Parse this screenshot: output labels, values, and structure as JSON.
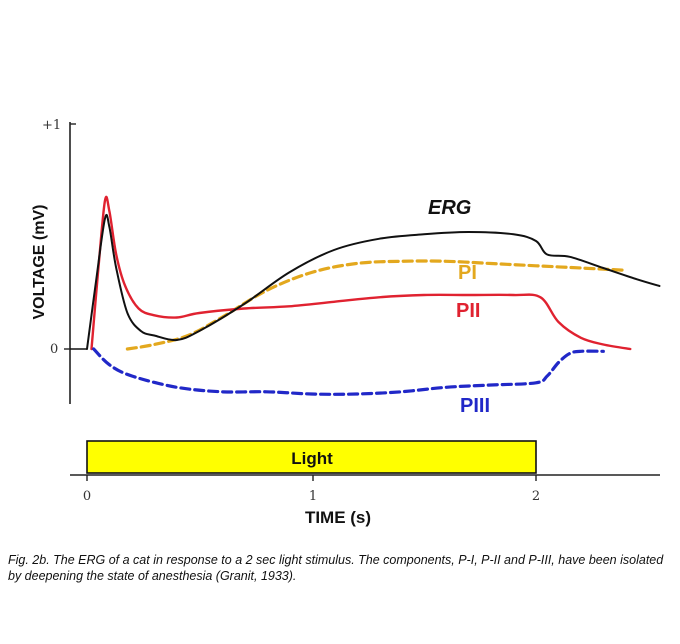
{
  "chart_data": {
    "type": "line",
    "xlabel": "TIME (s)",
    "ylabel": "VOLTAGE (mV)",
    "x_ticks": [
      "0",
      "1",
      "2"
    ],
    "y_ticks": [
      "0",
      "+1"
    ],
    "xlim": [
      -0.08,
      2.55
    ],
    "ylim": [
      -0.24,
      1.0
    ],
    "series": [
      {
        "name": "ERG",
        "color": "#111111",
        "style": "solid",
        "points": [
          [
            0.0,
            0.0
          ],
          [
            0.04,
            0.3
          ],
          [
            0.08,
            0.58
          ],
          [
            0.1,
            0.54
          ],
          [
            0.13,
            0.36
          ],
          [
            0.18,
            0.16
          ],
          [
            0.24,
            0.08
          ],
          [
            0.3,
            0.06
          ],
          [
            0.4,
            0.04
          ],
          [
            0.5,
            0.08
          ],
          [
            0.7,
            0.2
          ],
          [
            0.9,
            0.34
          ],
          [
            1.1,
            0.44
          ],
          [
            1.3,
            0.49
          ],
          [
            1.5,
            0.51
          ],
          [
            1.7,
            0.52
          ],
          [
            1.9,
            0.51
          ],
          [
            2.0,
            0.48
          ],
          [
            2.05,
            0.42
          ],
          [
            2.15,
            0.41
          ],
          [
            2.3,
            0.36
          ],
          [
            2.45,
            0.31
          ],
          [
            2.55,
            0.28
          ]
        ]
      },
      {
        "name": "PI",
        "color": "#e3a81e",
        "style": "dashed",
        "points": [
          [
            0.18,
            0.0
          ],
          [
            0.3,
            0.02
          ],
          [
            0.45,
            0.06
          ],
          [
            0.6,
            0.14
          ],
          [
            0.8,
            0.26
          ],
          [
            1.0,
            0.34
          ],
          [
            1.2,
            0.38
          ],
          [
            1.4,
            0.39
          ],
          [
            1.6,
            0.39
          ],
          [
            1.8,
            0.38
          ],
          [
            2.0,
            0.37
          ],
          [
            2.2,
            0.36
          ],
          [
            2.4,
            0.35
          ]
        ]
      },
      {
        "name": "PII",
        "color": "#e02230",
        "style": "solid",
        "points": [
          [
            0.02,
            0.0
          ],
          [
            0.05,
            0.35
          ],
          [
            0.08,
            0.66
          ],
          [
            0.1,
            0.61
          ],
          [
            0.13,
            0.42
          ],
          [
            0.17,
            0.28
          ],
          [
            0.23,
            0.18
          ],
          [
            0.3,
            0.15
          ],
          [
            0.4,
            0.14
          ],
          [
            0.5,
            0.16
          ],
          [
            0.7,
            0.18
          ],
          [
            0.9,
            0.19
          ],
          [
            1.1,
            0.21
          ],
          [
            1.3,
            0.23
          ],
          [
            1.5,
            0.24
          ],
          [
            1.7,
            0.24
          ],
          [
            1.9,
            0.24
          ],
          [
            2.02,
            0.23
          ],
          [
            2.1,
            0.12
          ],
          [
            2.2,
            0.05
          ],
          [
            2.3,
            0.02
          ],
          [
            2.42,
            0.0
          ]
        ]
      },
      {
        "name": "PIII",
        "color": "#2128c8",
        "style": "dashed",
        "points": [
          [
            0.03,
            0.0
          ],
          [
            0.1,
            -0.07
          ],
          [
            0.2,
            -0.12
          ],
          [
            0.4,
            -0.17
          ],
          [
            0.6,
            -0.19
          ],
          [
            0.8,
            -0.19
          ],
          [
            1.0,
            -0.2
          ],
          [
            1.2,
            -0.2
          ],
          [
            1.4,
            -0.19
          ],
          [
            1.6,
            -0.17
          ],
          [
            1.8,
            -0.16
          ],
          [
            2.0,
            -0.15
          ],
          [
            2.05,
            -0.12
          ],
          [
            2.1,
            -0.06
          ],
          [
            2.15,
            -0.02
          ],
          [
            2.2,
            -0.01
          ],
          [
            2.3,
            -0.01
          ]
        ]
      }
    ],
    "stimulus": {
      "label": "Light",
      "start": 0,
      "end": 2,
      "color": "#ffff00"
    }
  },
  "caption": "Fig. 2b. The ERG of a cat in response to a 2 sec light stimulus. The components, P-I, P-II and P-III, have been isolated by deepening the state of anesthesia (Granit, 1933)."
}
